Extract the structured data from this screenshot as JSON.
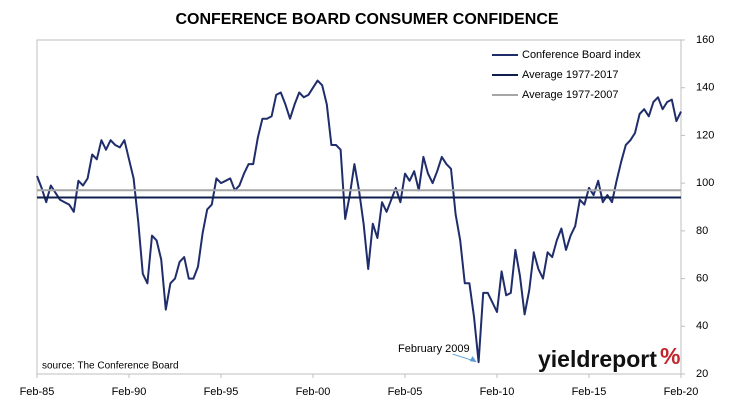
{
  "chart_data": {
    "type": "line",
    "title": "CONFERENCE BOARD CONSUMER CONFIDENCE",
    "categories": [
      "Feb-85",
      null,
      null,
      null,
      null,
      null,
      null,
      null,
      null,
      null,
      null,
      null,
      null,
      null,
      null,
      null,
      null,
      null,
      null,
      null,
      "Feb-90",
      null,
      null,
      null,
      null,
      null,
      null,
      null,
      null,
      null,
      null,
      null,
      null,
      null,
      null,
      null,
      null,
      null,
      null,
      null,
      "Feb-95",
      null,
      null,
      null,
      null,
      null,
      null,
      null,
      null,
      null,
      null,
      null,
      null,
      null,
      null,
      null,
      null,
      null,
      null,
      null,
      "Feb-00",
      null,
      null,
      null,
      null,
      null,
      null,
      null,
      null,
      null,
      null,
      null,
      null,
      null,
      null,
      null,
      null,
      null,
      null,
      null,
      "Feb-05",
      null,
      null,
      null,
      null,
      null,
      null,
      null,
      null,
      null,
      null,
      null,
      null,
      null,
      null,
      null,
      null,
      null,
      null,
      null,
      "Feb-10",
      null,
      null,
      null,
      null,
      null,
      null,
      null,
      null,
      null,
      null,
      null,
      null,
      null,
      null,
      null,
      null,
      null,
      null,
      null,
      "Feb-15",
      null,
      null,
      null,
      null,
      null,
      null,
      null,
      null,
      null,
      null,
      null,
      null,
      null,
      null,
      null,
      null,
      null,
      null,
      null,
      "Feb-20"
    ],
    "series": [
      {
        "name": "Conference Board index",
        "color": "#1f2d6b",
        "values": [
          103,
          98,
          92,
          99,
          96,
          93,
          92,
          91,
          88,
          101,
          99,
          102,
          112,
          110,
          118,
          114,
          118,
          116,
          115,
          118,
          110,
          102,
          84,
          62,
          58,
          78,
          76,
          68,
          47,
          58,
          60,
          67,
          69,
          60,
          60,
          65,
          79,
          89,
          91,
          102,
          100,
          101,
          102,
          97,
          99,
          104,
          108,
          108,
          119,
          127,
          127,
          128,
          137,
          138,
          133,
          127,
          133,
          138,
          136,
          137,
          140,
          143,
          141,
          133,
          116,
          116,
          114,
          85,
          95,
          108,
          97,
          83,
          64,
          83,
          77,
          92,
          88,
          93,
          98,
          92,
          104,
          101,
          105,
          97,
          111,
          104,
          100,
          105,
          111,
          108,
          106,
          87,
          76,
          58,
          58,
          44,
          25,
          54,
          54,
          50,
          46,
          63,
          53,
          54,
          72,
          61,
          45,
          55,
          71,
          64,
          60,
          71,
          69,
          76,
          81,
          72,
          78,
          82,
          93,
          91,
          98,
          95,
          101,
          92,
          95,
          92,
          101,
          109,
          116,
          118,
          121,
          129,
          131,
          128,
          134,
          136,
          131,
          134,
          135,
          126,
          130
        ]
      },
      {
        "name": "Average 1977-2017",
        "color": "#0f1f4d",
        "value": 94
      },
      {
        "name": "Average 1977-2007",
        "color": "#a6a6a6",
        "value": 97
      }
    ],
    "ylim": [
      20,
      160
    ],
    "yticks": [
      20,
      40,
      60,
      80,
      100,
      120,
      140,
      160
    ],
    "legend": "upper right",
    "annotation": "February 2009",
    "source": "source: The Conference Board",
    "logo": "yieldreport",
    "logo_symbol": "%"
  }
}
